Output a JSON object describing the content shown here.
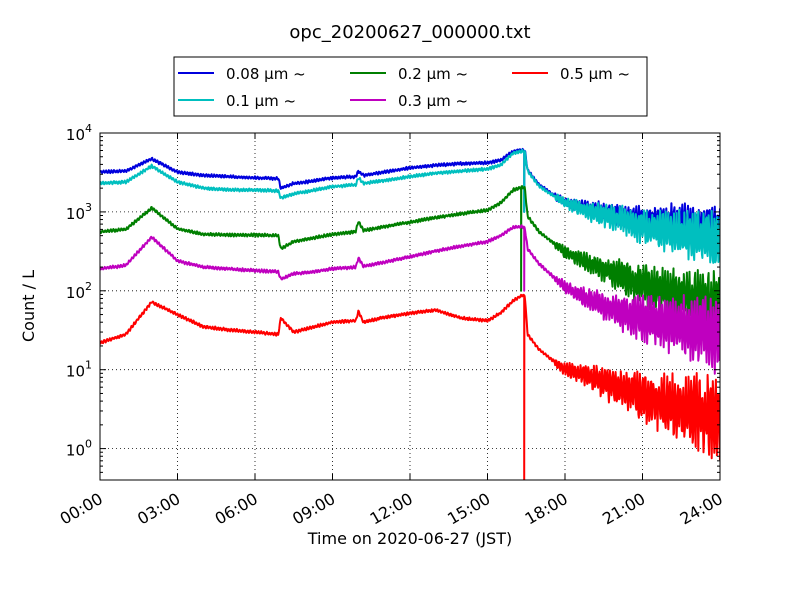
{
  "chart_data": {
    "type": "line",
    "title": "opc_20200627_000000.txt",
    "xlabel": "Time on 2020-06-27 (JST)",
    "ylabel": "Count / L",
    "yscale": "log",
    "xlim": [
      "00:00",
      "24:00"
    ],
    "ylim": [
      0.4,
      10000
    ],
    "grid": true,
    "legend_position": "top, above plot",
    "x_ticks": [
      "00:00",
      "03:00",
      "06:00",
      "09:00",
      "12:00",
      "15:00",
      "18:00",
      "21:00",
      "24:00"
    ],
    "y_ticks": [
      {
        "base": "10",
        "exp": "0",
        "value": 1
      },
      {
        "base": "10",
        "exp": "1",
        "value": 10
      },
      {
        "base": "10",
        "exp": "2",
        "value": 100
      },
      {
        "base": "10",
        "exp": "3",
        "value": 1000
      },
      {
        "base": "10",
        "exp": "4",
        "value": 10000
      }
    ],
    "x_hours": [
      0,
      1,
      2,
      3,
      4,
      5,
      6,
      6.9,
      7.0,
      7.5,
      8,
      9,
      9.9,
      10.0,
      10.2,
      11,
      12,
      13,
      14,
      15,
      15.5,
      16.0,
      16.35,
      16.45,
      16.55,
      17,
      18,
      19,
      20,
      21,
      22,
      23,
      24
    ],
    "series": [
      {
        "name": "0.08 μm ~",
        "color": "#0000dd",
        "values": [
          3200,
          3300,
          4700,
          3200,
          2900,
          2800,
          2700,
          2650,
          2000,
          2300,
          2400,
          2700,
          2800,
          3300,
          2900,
          3200,
          3600,
          3900,
          4100,
          4200,
          4500,
          5900,
          6100,
          6000,
          3400,
          2200,
          1300,
          1100,
          920,
          800,
          750,
          700,
          650
        ]
      },
      {
        "name": "0.1 μm ~",
        "color": "#00bfbf",
        "values": [
          2300,
          2400,
          3800,
          2400,
          2000,
          1900,
          1900,
          1850,
          1500,
          1700,
          1800,
          2100,
          2200,
          2700,
          2300,
          2500,
          2800,
          3100,
          3300,
          3500,
          3900,
          5600,
          5900,
          5800,
          3300,
          2100,
          1300,
          1000,
          820,
          650,
          550,
          500,
          420
        ]
      },
      {
        "name": "0.2 μm ~",
        "color": "#007f00",
        "values": [
          560,
          600,
          1120,
          610,
          520,
          510,
          510,
          500,
          340,
          420,
          450,
          520,
          560,
          760,
          580,
          650,
          740,
          850,
          950,
          1050,
          1300,
          1900,
          2050,
          2000,
          880,
          560,
          310,
          220,
          160,
          120,
          95,
          80,
          65
        ]
      },
      {
        "name": "0.3 μm ~",
        "color": "#bf00bf",
        "values": [
          190,
          210,
          480,
          240,
          200,
          190,
          180,
          175,
          140,
          165,
          170,
          190,
          200,
          260,
          205,
          230,
          270,
          320,
          370,
          420,
          500,
          640,
          650,
          620,
          340,
          220,
          110,
          75,
          55,
          45,
          38,
          32,
          28
        ]
      },
      {
        "name": "0.5 μm ~",
        "color": "#ff0000",
        "values": [
          22,
          28,
          72,
          50,
          35,
          32,
          30,
          28,
          45,
          30,
          33,
          40,
          42,
          55,
          40,
          46,
          52,
          57,
          45,
          42,
          52,
          75,
          88,
          85,
          28,
          18,
          10,
          8,
          6,
          4.5,
          3.5,
          3,
          2.5
        ]
      }
    ],
    "dropouts": [
      {
        "series": "0.08 μm ~",
        "x_hour": 16.42,
        "value": 1000
      },
      {
        "series": "0.1 μm ~",
        "x_hour": 16.42,
        "value": 1000
      },
      {
        "series": "0.2 μm ~",
        "x_hour": 16.3,
        "value": 100
      },
      {
        "series": "0.3 μm ~",
        "x_hour": 16.42,
        "value": 100
      },
      {
        "series": "0.5 μm ~",
        "x_hour": 16.42,
        "value": 0.4
      }
    ]
  }
}
